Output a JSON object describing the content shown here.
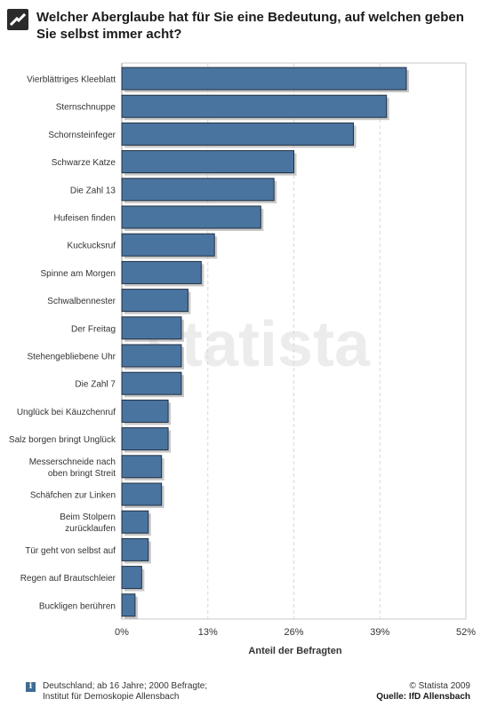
{
  "header": {
    "title": "Welcher Aberglaube hat für Sie eine Bedeutung, auf welchen geben Sie selbst immer acht?"
  },
  "watermark": "statista",
  "colors": {
    "bar": "#4a74a0",
    "bar_border": "#1f2f40",
    "shadow": "#9a9a9a",
    "grid": "#d8d8d8",
    "frame": "#c8c8c8"
  },
  "chart_data": {
    "type": "bar",
    "orientation": "horizontal",
    "xlabel": "Anteil der Befragten",
    "xlim": [
      0,
      52
    ],
    "xticks": [
      "0%",
      "13%",
      "26%",
      "39%",
      "52%"
    ],
    "xtick_values": [
      0,
      13,
      26,
      39,
      52
    ],
    "grid": true,
    "categories": [
      "Vierblättriges Kleeblatt",
      "Sternschnuppe",
      "Schornsteinfeger",
      "Schwarze Katze",
      "Die Zahl 13",
      "Hufeisen finden",
      "Kuckucksruf",
      "Spinne am Morgen",
      "Schwalbennester",
      "Der Freitag",
      "Stehengebliebene Uhr",
      "Die Zahl 7",
      "Unglück bei Käuzchenruf",
      "Salz borgen bringt Unglück",
      "Messerschneide nach oben bringt Streit",
      "Schäfchen zur Linken",
      "Beim Stolpern zurücklaufen",
      "Tür geht von selbst auf",
      "Regen auf Brautschleier",
      "Buckligen berühren"
    ],
    "category_lines": [
      [
        "Vierblättriges Kleeblatt"
      ],
      [
        "Sternschnuppe"
      ],
      [
        "Schornsteinfeger"
      ],
      [
        "Schwarze Katze"
      ],
      [
        "Die Zahl 13"
      ],
      [
        "Hufeisen finden"
      ],
      [
        "Kuckucksruf"
      ],
      [
        "Spinne am Morgen"
      ],
      [
        "Schwalbennester"
      ],
      [
        "Der Freitag"
      ],
      [
        "Stehengebliebene Uhr"
      ],
      [
        "Die Zahl 7"
      ],
      [
        "Unglück bei Käuzchenruf"
      ],
      [
        "Salz borgen bringt Unglück"
      ],
      [
        "Messerschneide nach",
        "oben bringt Streit"
      ],
      [
        "Schäfchen zur Linken"
      ],
      [
        "Beim Stolpern",
        "zurücklaufen"
      ],
      [
        "Tür geht von selbst auf"
      ],
      [
        "Regen auf Brautschleier"
      ],
      [
        "Buckligen berühren"
      ]
    ],
    "values": [
      43,
      40,
      35,
      26,
      23,
      21,
      14,
      12,
      10,
      9,
      9,
      9,
      7,
      7,
      6,
      6,
      4,
      4,
      3,
      2
    ]
  },
  "footer": {
    "info_icon": "i",
    "note_line1": "Deutschland; ab 16 Jahre; 2000 Befragte;",
    "note_line2": "Institut für Demoskopie Allensbach",
    "copyright": "© Statista 2009",
    "source": "Quelle: IfD Allensbach"
  }
}
